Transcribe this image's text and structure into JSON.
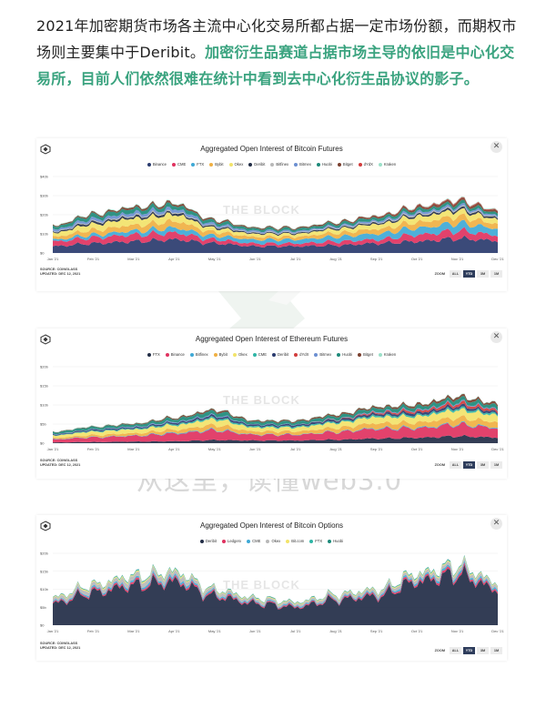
{
  "intro": {
    "text_plain": "2021年加密期货市场各主流中心化交易所都占据一定市场份额，而期权市场则主要集中于Deribit。",
    "text_highlight": "加密衍生品赛道占据市场主导的依旧是中心化交易所，目前人们依然很难在统计中看到去中心化衍生品协议的影子。"
  },
  "watermark": {
    "text": "从这里，读懂web3.0",
    "chart_watermark": "THE BLOCK"
  },
  "colors": {
    "highlight": "#3aa37f",
    "zoom_active": "#2e3d5c"
  },
  "charts": [
    {
      "title": "Aggregated Open Interest of Bitcoin Futures",
      "legend": [
        {
          "name": "Binance",
          "color": "#2a3b6e"
        },
        {
          "name": "CME",
          "color": "#e0325f"
        },
        {
          "name": "FTX",
          "color": "#3fa9d6"
        },
        {
          "name": "Bybit",
          "color": "#f0b042"
        },
        {
          "name": "Okex",
          "color": "#f2e36a"
        },
        {
          "name": "Deribit",
          "color": "#222d46"
        },
        {
          "name": "Bitfinex",
          "color": "#b8b8b8"
        },
        {
          "name": "Bitmex",
          "color": "#6b8fd1"
        },
        {
          "name": "Huobi",
          "color": "#1d8a7a"
        },
        {
          "name": "Bitget",
          "color": "#7a3f2e"
        },
        {
          "name": "dYdX",
          "color": "#d23c3c"
        },
        {
          "name": "Kraken",
          "color": "#9be0c8"
        }
      ],
      "source": "SOURCE: COINGLASS",
      "updated": "UPDATED: DEC 12, 2021",
      "zoom_label": "ZOOM",
      "zoom_buttons": [
        "ALL",
        "YTD",
        "3M",
        "1M"
      ],
      "zoom_active": "YTD"
    },
    {
      "title": "Aggregated Open Interest of Ethereum Futures",
      "legend": [
        {
          "name": "FTX",
          "color": "#222d46"
        },
        {
          "name": "Binance",
          "color": "#e0325f"
        },
        {
          "name": "Bitfinex",
          "color": "#3fa9d6"
        },
        {
          "name": "Bybit",
          "color": "#f0b042"
        },
        {
          "name": "Okex",
          "color": "#f2e36a"
        },
        {
          "name": "CME",
          "color": "#2fb5a6"
        },
        {
          "name": "Deribit",
          "color": "#2a3b6e"
        },
        {
          "name": "dYdX",
          "color": "#d23c3c"
        },
        {
          "name": "Bitmex",
          "color": "#6b8fd1"
        },
        {
          "name": "Huobi",
          "color": "#1d8a7a"
        },
        {
          "name": "Bitget",
          "color": "#7a3f2e"
        },
        {
          "name": "Kraken",
          "color": "#9be0c8"
        }
      ],
      "source": "SOURCE: COINGLASS",
      "updated": "UPDATED: DEC 12, 2021",
      "zoom_label": "ZOOM",
      "zoom_buttons": [
        "ALL",
        "YTD",
        "3M",
        "1M"
      ],
      "zoom_active": "YTD"
    },
    {
      "title": "Aggregated Open Interest of Bitcoin Options",
      "legend": [
        {
          "name": "Deribit",
          "color": "#222d46"
        },
        {
          "name": "Ledgerx",
          "color": "#e0325f"
        },
        {
          "name": "CME",
          "color": "#3fa9d6"
        },
        {
          "name": "Okex",
          "color": "#b8b8b8"
        },
        {
          "name": "Bit.com",
          "color": "#f2e36a"
        },
        {
          "name": "FTX",
          "color": "#2fb5a6"
        },
        {
          "name": "Huobi",
          "color": "#1d8a7a"
        }
      ],
      "source": "SOURCE: COINGLASS",
      "updated": "UPDATED: DEC 12, 2021",
      "zoom_label": "ZOOM",
      "zoom_buttons": [
        "ALL",
        "YTD",
        "3M",
        "1M"
      ],
      "zoom_active": "YTD"
    }
  ],
  "chart_data": [
    {
      "type": "area",
      "title": "Aggregated Open Interest of Bitcoin Futures",
      "stacked": true,
      "y_ticks": [
        "$0",
        "$10b",
        "$20b",
        "$30b",
        "$40b"
      ],
      "ylim": [
        0,
        40
      ],
      "x_ticks": [
        "Jan '21",
        "Feb '21",
        "Mar '21",
        "Apr '21",
        "May '21",
        "Jun '21",
        "Jul '21",
        "Aug '21",
        "Sep '21",
        "Oct '21",
        "Nov '21",
        "Dec '21"
      ],
      "x": [
        "Jan '21",
        "Feb '21",
        "Mar '21",
        "Apr '21",
        "May '21",
        "Jun '21",
        "Jul '21",
        "Aug '21",
        "Sep '21",
        "Oct '21",
        "Nov '21",
        "Dec '21"
      ],
      "series": [
        {
          "name": "Binance",
          "values": [
            3.5,
            5,
            6,
            7,
            5,
            3.5,
            3.5,
            4,
            5,
            6,
            7.5,
            6.5
          ]
        },
        {
          "name": "CME",
          "values": [
            2.5,
            3,
            3.5,
            3.5,
            2,
            1.5,
            1.5,
            2,
            2,
            3.5,
            4,
            3
          ]
        },
        {
          "name": "FTX",
          "values": [
            1,
            1.5,
            2,
            2.5,
            2,
            2,
            2,
            2.5,
            3,
            3.5,
            4,
            3.5
          ]
        },
        {
          "name": "Bybit",
          "values": [
            1.5,
            2.5,
            3,
            3.5,
            2,
            1.5,
            1.5,
            2,
            2.5,
            3,
            3.5,
            2.5
          ]
        },
        {
          "name": "Okex",
          "values": [
            2,
            3,
            3.5,
            3.5,
            2,
            1.5,
            1.5,
            2,
            2.5,
            3,
            3,
            2.5
          ]
        },
        {
          "name": "Deribit",
          "values": [
            0.5,
            1,
            1,
            1,
            0.7,
            0.5,
            0.5,
            0.6,
            0.7,
            0.8,
            1,
            0.8
          ]
        },
        {
          "name": "Bitfinex",
          "values": [
            0.3,
            0.4,
            0.5,
            0.5,
            0.3,
            0.3,
            0.3,
            0.3,
            0.4,
            0.5,
            0.5,
            0.4
          ]
        },
        {
          "name": "Bitmex",
          "values": [
            1,
            1.3,
            1.5,
            1.5,
            1,
            0.8,
            0.7,
            0.7,
            0.8,
            1,
            1,
            0.8
          ]
        },
        {
          "name": "Huobi",
          "values": [
            1.5,
            2,
            2,
            2,
            1.5,
            1.2,
            1.2,
            1.3,
            1.5,
            1.5,
            1.5,
            1.3
          ]
        },
        {
          "name": "Bitget",
          "values": [
            0.5,
            0.7,
            1,
            1,
            0.8,
            0.6,
            0.6,
            0.7,
            0.8,
            1,
            1.2,
            1
          ]
        },
        {
          "name": "dYdX",
          "values": [
            0,
            0,
            0,
            0,
            0,
            0,
            0,
            0,
            0.2,
            0.3,
            0.4,
            0.3
          ]
        },
        {
          "name": "Kraken",
          "values": [
            0.2,
            0.3,
            0.3,
            0.3,
            0.2,
            0.2,
            0.2,
            0.2,
            0.2,
            0.3,
            0.3,
            0.3
          ]
        }
      ]
    },
    {
      "type": "area",
      "title": "Aggregated Open Interest of Ethereum Futures",
      "stacked": true,
      "y_ticks": [
        "$0",
        "$5b",
        "$10b",
        "$15b",
        "$20b"
      ],
      "ylim": [
        0,
        20
      ],
      "x_ticks": [
        "Jan '21",
        "Feb '21",
        "Mar '21",
        "Apr '21",
        "May '21",
        "Jun '21",
        "Jul '21",
        "Aug '21",
        "Sep '21",
        "Oct '21",
        "Nov '21",
        "Dec '21"
      ],
      "x": [
        "Jan '21",
        "Feb '21",
        "Mar '21",
        "Apr '21",
        "May '21",
        "Jun '21",
        "Jul '21",
        "Aug '21",
        "Sep '21",
        "Oct '21",
        "Nov '21",
        "Dec '21"
      ],
      "series": [
        {
          "name": "FTX",
          "values": [
            0.2,
            0.3,
            0.4,
            0.5,
            0.8,
            0.7,
            0.7,
            0.9,
            1.2,
            1.4,
            1.8,
            1.5
          ]
        },
        {
          "name": "Binance",
          "values": [
            0.8,
            1.2,
            1.5,
            2,
            2.5,
            1.5,
            1.5,
            2,
            2.5,
            2.5,
            3,
            2.5
          ]
        },
        {
          "name": "Bitfinex",
          "values": [
            0.1,
            0.1,
            0.1,
            0.2,
            0.2,
            0.1,
            0.1,
            0.1,
            0.2,
            0.2,
            0.2,
            0.2
          ]
        },
        {
          "name": "Bybit",
          "values": [
            0.3,
            0.5,
            0.6,
            0.8,
            1.2,
            0.8,
            0.8,
            1,
            1.3,
            1.3,
            1.6,
            1.4
          ]
        },
        {
          "name": "Okex",
          "values": [
            0.6,
            0.9,
            1,
            1.2,
            1.5,
            1,
            1,
            1.3,
            1.6,
            1.6,
            2,
            1.8
          ]
        },
        {
          "name": "CME",
          "values": [
            0.1,
            0.2,
            0.2,
            0.3,
            0.4,
            0.3,
            0.3,
            0.3,
            0.4,
            0.4,
            0.5,
            0.4
          ]
        },
        {
          "name": "Deribit",
          "values": [
            0.2,
            0.3,
            0.3,
            0.4,
            0.5,
            0.4,
            0.4,
            0.5,
            0.5,
            0.6,
            0.6,
            0.5
          ]
        },
        {
          "name": "dYdX",
          "values": [
            0,
            0,
            0,
            0,
            0,
            0,
            0,
            0.1,
            0.3,
            0.5,
            0.7,
            0.6
          ]
        },
        {
          "name": "Bitmex",
          "values": [
            0.1,
            0.1,
            0.2,
            0.2,
            0.2,
            0.1,
            0.1,
            0.1,
            0.2,
            0.2,
            0.2,
            0.2
          ]
        },
        {
          "name": "Huobi",
          "values": [
            0.5,
            0.6,
            0.6,
            0.8,
            1,
            0.7,
            0.7,
            0.8,
            0.9,
            0.9,
            1,
            0.9
          ]
        },
        {
          "name": "Bitget",
          "values": [
            0.1,
            0.1,
            0.2,
            0.3,
            0.4,
            0.3,
            0.3,
            0.4,
            0.4,
            0.5,
            0.6,
            0.5
          ]
        },
        {
          "name": "Kraken",
          "values": [
            0.1,
            0.1,
            0.1,
            0.1,
            0.1,
            0.1,
            0.1,
            0.1,
            0.1,
            0.1,
            0.1,
            0.1
          ]
        }
      ]
    },
    {
      "type": "area",
      "title": "Aggregated Open Interest of Bitcoin Options",
      "stacked": true,
      "y_ticks": [
        "$0",
        "$5b",
        "$10b",
        "$15b",
        "$20b"
      ],
      "ylim": [
        0,
        20
      ],
      "x_ticks": [
        "Jan '21",
        "Feb '21",
        "Mar '21",
        "Apr '21",
        "May '21",
        "Jun '21",
        "Jul '21",
        "Aug '21",
        "Sep '21",
        "Oct '21",
        "Nov '21",
        "Dec '21"
      ],
      "x": [
        "Jan '21",
        "Feb '21",
        "Mar '21",
        "Apr '21",
        "May '21",
        "Jun '21",
        "Jul '21",
        "Aug '21",
        "Sep '21",
        "Oct '21",
        "Nov '21",
        "Dec '21"
      ],
      "series": [
        {
          "name": "Deribit",
          "values": [
            6,
            9,
            11,
            12,
            8,
            6,
            5,
            7,
            8,
            12,
            14,
            10
          ]
        },
        {
          "name": "Ledgerx",
          "values": [
            0.3,
            0.4,
            0.5,
            0.5,
            0.4,
            0.3,
            0.3,
            0.3,
            0.4,
            0.5,
            0.6,
            0.5
          ]
        },
        {
          "name": "CME",
          "values": [
            0.3,
            0.4,
            0.5,
            0.6,
            0.4,
            0.3,
            0.3,
            0.3,
            0.4,
            0.5,
            0.6,
            0.5
          ]
        },
        {
          "name": "Okex",
          "values": [
            0.8,
            1,
            1.2,
            1.2,
            0.8,
            0.6,
            0.5,
            0.6,
            0.7,
            0.8,
            0.9,
            0.7
          ]
        },
        {
          "name": "Bit.com",
          "values": [
            0.2,
            0.3,
            0.3,
            0.3,
            0.2,
            0.2,
            0.2,
            0.2,
            0.2,
            0.3,
            0.3,
            0.2
          ]
        },
        {
          "name": "FTX",
          "values": [
            0.1,
            0.1,
            0.2,
            0.2,
            0.1,
            0.1,
            0.1,
            0.1,
            0.1,
            0.2,
            0.2,
            0.1
          ]
        },
        {
          "name": "Huobi",
          "values": [
            0.1,
            0.1,
            0.1,
            0.1,
            0.1,
            0.1,
            0.1,
            0.1,
            0.1,
            0.1,
            0.1,
            0.1
          ]
        }
      ]
    }
  ]
}
